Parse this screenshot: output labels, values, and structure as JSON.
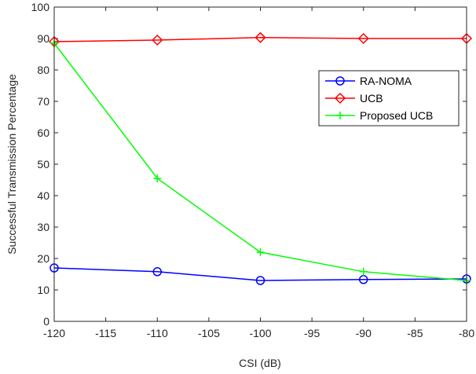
{
  "chart_data": {
    "type": "line",
    "xlabel": "CSI (dB)",
    "ylabel": "Successful Transmission Percentage",
    "xlim": [
      -120,
      -80
    ],
    "ylim": [
      0,
      100
    ],
    "xticks": [
      -120,
      -115,
      -110,
      -105,
      -100,
      -95,
      -90,
      -85,
      -80
    ],
    "yticks": [
      0,
      10,
      20,
      30,
      40,
      50,
      60,
      70,
      80,
      90,
      100
    ],
    "grid": false,
    "legend_position": "upper-right",
    "series": [
      {
        "name": "RA-NOMA",
        "color": "#0000ff",
        "marker": "circle",
        "x": [
          -120,
          -110,
          -100,
          -90,
          -80
        ],
        "y": [
          17.0,
          15.8,
          13.0,
          13.3,
          13.5
        ]
      },
      {
        "name": "UCB",
        "color": "#ff0000",
        "marker": "diamond",
        "x": [
          -120,
          -110,
          -100,
          -90,
          -80
        ],
        "y": [
          89.0,
          89.5,
          90.3,
          90.0,
          90.0
        ]
      },
      {
        "name": "Proposed UCB",
        "color": "#00ff00",
        "marker": "plus",
        "x": [
          -120,
          -110,
          -100,
          -90,
          -80
        ],
        "y": [
          88.5,
          45.5,
          22.0,
          15.8,
          13.0
        ]
      }
    ]
  }
}
